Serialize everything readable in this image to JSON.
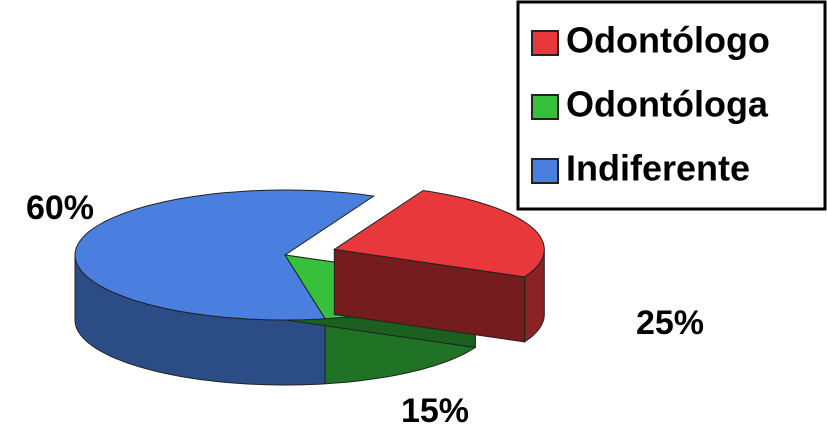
{
  "chart_data": {
    "type": "pie3d",
    "categories": [
      "Odontólogo",
      "Odontóloga",
      "Indiferente"
    ],
    "values": [
      25,
      15,
      60
    ],
    "value_labels": [
      "25%",
      "15%",
      "60%"
    ],
    "colors": [
      "#e8383c",
      "#36c03c",
      "#4a7fe0"
    ],
    "exploded": [
      true,
      false,
      false
    ],
    "legend": "top-right"
  }
}
